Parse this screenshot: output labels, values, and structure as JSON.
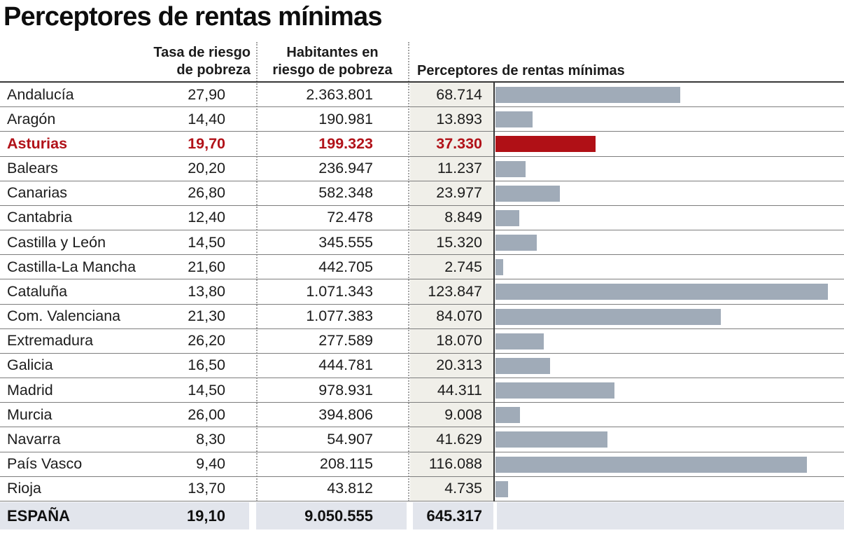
{
  "title": "Perceptores de rentas mínimas",
  "colors": {
    "bar_default": "#a0abb8",
    "bar_highlight": "#b01016",
    "highlight_text": "#b11219",
    "recipients_column_bg": "#f0efe9",
    "total_row_bg": "#e2e5ec",
    "rule_dark": "#383838",
    "rule_row": "#7d7d7d"
  },
  "table": {
    "headers": {
      "rate_line1": "Tasa de riesgo",
      "rate_line2": "de pobreza",
      "inhabitants_line1": "Habitantes en",
      "inhabitants_line2": "riesgo de pobreza",
      "recipients": "Perceptores de rentas mínimas"
    },
    "rows": [
      {
        "region": "Andalucía",
        "rate": "27,90",
        "inhabitants": "2.363.801",
        "recipients": "68.714",
        "recipients_value": 68714,
        "highlight": false
      },
      {
        "region": "Aragón",
        "rate": "14,40",
        "inhabitants": "190.981",
        "recipients": "13.893",
        "recipients_value": 13893,
        "highlight": false
      },
      {
        "region": "Asturias",
        "rate": "19,70",
        "inhabitants": "199.323",
        "recipients": "37.330",
        "recipients_value": 37330,
        "highlight": true
      },
      {
        "region": "Balears",
        "rate": "20,20",
        "inhabitants": "236.947",
        "recipients": "11.237",
        "recipients_value": 11237,
        "highlight": false
      },
      {
        "region": "Canarias",
        "rate": "26,80",
        "inhabitants": "582.348",
        "recipients": "23.977",
        "recipients_value": 23977,
        "highlight": false
      },
      {
        "region": "Cantabria",
        "rate": "12,40",
        "inhabitants": "72.478",
        "recipients": "8.849",
        "recipients_value": 8849,
        "highlight": false
      },
      {
        "region": "Castilla y León",
        "rate": "14,50",
        "inhabitants": "345.555",
        "recipients": "15.320",
        "recipients_value": 15320,
        "highlight": false
      },
      {
        "region": "Castilla-La Mancha",
        "rate": "21,60",
        "inhabitants": "442.705",
        "recipients": "2.745",
        "recipients_value": 2745,
        "highlight": false
      },
      {
        "region": "Cataluña",
        "rate": "13,80",
        "inhabitants": "1.071.343",
        "recipients": "123.847",
        "recipients_value": 123847,
        "highlight": false
      },
      {
        "region": "Com. Valenciana",
        "rate": "21,30",
        "inhabitants": "1.077.383",
        "recipients": "84.070",
        "recipients_value": 84070,
        "highlight": false
      },
      {
        "region": "Extremadura",
        "rate": "26,20",
        "inhabitants": "277.589",
        "recipients": "18.070",
        "recipients_value": 18070,
        "highlight": false
      },
      {
        "region": "Galicia",
        "rate": "16,50",
        "inhabitants": "444.781",
        "recipients": "20.313",
        "recipients_value": 20313,
        "highlight": false
      },
      {
        "region": "Madrid",
        "rate": "14,50",
        "inhabitants": "978.931",
        "recipients": "44.311",
        "recipients_value": 44311,
        "highlight": false
      },
      {
        "region": "Murcia",
        "rate": "26,00",
        "inhabitants": "394.806",
        "recipients": "9.008",
        "recipients_value": 9008,
        "highlight": false
      },
      {
        "region": "Navarra",
        "rate": "8,30",
        "inhabitants": "54.907",
        "recipients": "41.629",
        "recipients_value": 41629,
        "highlight": false
      },
      {
        "region": "País Vasco",
        "rate": "9,40",
        "inhabitants": "208.115",
        "recipients": "116.088",
        "recipients_value": 116088,
        "highlight": false
      },
      {
        "region": "Rioja",
        "rate": "13,70",
        "inhabitants": "43.812",
        "recipients": "4.735",
        "recipients_value": 4735,
        "highlight": false
      }
    ],
    "total_row": {
      "region": "ESPAÑA",
      "rate": "19,10",
      "inhabitants": "9.050.555",
      "recipients": "645.317"
    }
  },
  "chart_data": {
    "type": "bar",
    "orientation": "horizontal",
    "title": "Perceptores de rentas mínimas",
    "categories": [
      "Andalucía",
      "Aragón",
      "Asturias",
      "Balears",
      "Canarias",
      "Cantabria",
      "Castilla y León",
      "Castilla-La Mancha",
      "Cataluña",
      "Com. Valenciana",
      "Extremadura",
      "Galicia",
      "Madrid",
      "Murcia",
      "Navarra",
      "País Vasco",
      "Rioja"
    ],
    "series": [
      {
        "name": "Tasa de riesgo de pobreza",
        "values": [
          27.9,
          14.4,
          19.7,
          20.2,
          26.8,
          12.4,
          14.5,
          21.6,
          13.8,
          21.3,
          26.2,
          16.5,
          14.5,
          26.0,
          8.3,
          9.4,
          13.7
        ]
      },
      {
        "name": "Habitantes en riesgo de pobreza",
        "values": [
          2363801,
          190981,
          199323,
          236947,
          582348,
          72478,
          345555,
          442705,
          1071343,
          1077383,
          277589,
          444781,
          978931,
          394806,
          54907,
          208115,
          43812
        ]
      },
      {
        "name": "Perceptores de rentas mínimas",
        "values": [
          68714,
          13893,
          37330,
          11237,
          23977,
          8849,
          15320,
          2745,
          123847,
          84070,
          18070,
          20313,
          44311,
          9008,
          41629,
          116088,
          4735
        ]
      }
    ],
    "bars_plotted_series": "Perceptores de rentas mínimas",
    "highlighted_category": "Asturias",
    "total": {
      "label": "ESPAÑA",
      "Tasa de riesgo de pobreza": 19.1,
      "Habitantes en riesgo de pobreza": 9050555,
      "Perceptores de rentas mínimas": 645317
    },
    "xlim": [
      0,
      123847
    ],
    "grid": false,
    "legend": false
  }
}
